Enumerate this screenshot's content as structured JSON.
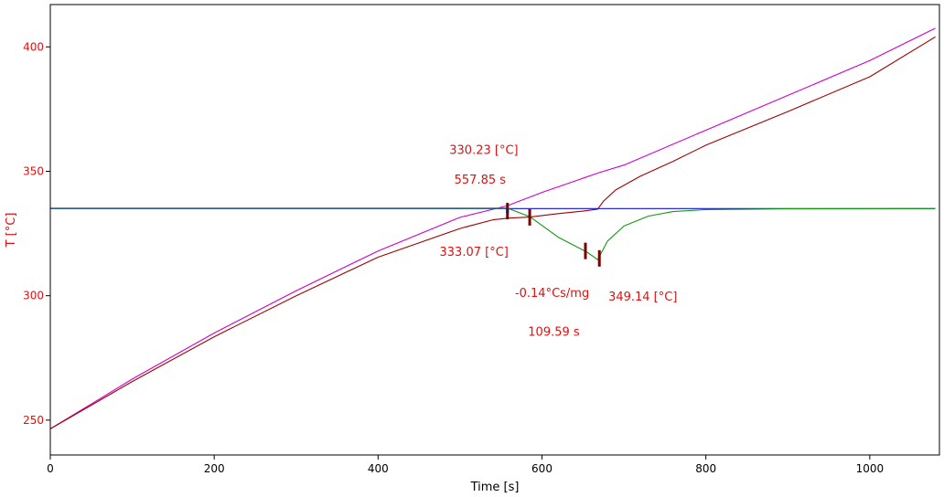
{
  "chart_data": {
    "type": "line",
    "xlabel": "Time [s]",
    "ylabel": "T  [°C]",
    "xlim": [
      0,
      1085
    ],
    "ylim": [
      236,
      417
    ],
    "xticks": [
      0,
      200,
      400,
      600,
      800,
      1000
    ],
    "yticks": [
      250,
      300,
      350,
      400
    ],
    "grid": false,
    "colors": {
      "frame": "#000000",
      "ytick_text": "#e01010",
      "annotation_text": "#e01010",
      "marker": "#7a0000",
      "marker_cap": "#1a1a6e"
    },
    "series": [
      {
        "color": "#cc00cc",
        "points": [
          [
            0,
            246.5
          ],
          [
            50,
            256.5
          ],
          [
            100,
            266.5
          ],
          [
            200,
            285
          ],
          [
            300,
            302
          ],
          [
            400,
            318
          ],
          [
            500,
            331.5
          ],
          [
            557.85,
            336.2
          ],
          [
            600,
            341.5
          ],
          [
            670,
            349.5
          ],
          [
            700,
            352.5
          ],
          [
            800,
            366.5
          ],
          [
            900,
            380.5
          ],
          [
            1000,
            394.5
          ],
          [
            1080,
            407.5
          ]
        ]
      },
      {
        "color": "#a00000",
        "points": [
          [
            0,
            246.5
          ],
          [
            50,
            256
          ],
          [
            100,
            265.5
          ],
          [
            200,
            283.5
          ],
          [
            300,
            300
          ],
          [
            400,
            315.5
          ],
          [
            500,
            327
          ],
          [
            540,
            330.5
          ],
          [
            560,
            331.2
          ],
          [
            585,
            331.6
          ],
          [
            620,
            333
          ],
          [
            650,
            334
          ],
          [
            668,
            334.8
          ],
          [
            675,
            338
          ],
          [
            690,
            342.5
          ],
          [
            720,
            348
          ],
          [
            760,
            354
          ],
          [
            800,
            360.5
          ],
          [
            900,
            374
          ],
          [
            1000,
            388
          ],
          [
            1080,
            404
          ]
        ]
      },
      {
        "color": "#1010cc",
        "points": [
          [
            0,
            335
          ],
          [
            200,
            335
          ],
          [
            400,
            335
          ],
          [
            557.85,
            335
          ],
          [
            600,
            335
          ],
          [
            668,
            335
          ],
          [
            800,
            335
          ],
          [
            1080,
            335
          ]
        ]
      },
      {
        "color": "#119911",
        "points": [
          [
            0,
            335.2
          ],
          [
            557.85,
            335.2
          ],
          [
            585,
            331.8
          ],
          [
            620,
            323.5
          ],
          [
            655,
            317.5
          ],
          [
            668,
            314.5
          ],
          [
            680,
            322
          ],
          [
            700,
            328
          ],
          [
            730,
            332
          ],
          [
            760,
            333.8
          ],
          [
            800,
            334.6
          ],
          [
            900,
            334.9
          ],
          [
            1080,
            335
          ]
        ]
      }
    ],
    "markers": [
      {
        "x": 557.85,
        "y": 334
      },
      {
        "x": 585,
        "y": 331.5
      },
      {
        "x": 653,
        "y": 318
      },
      {
        "x": 670,
        "y": 315
      }
    ],
    "annotations": [
      {
        "text": "330.23 [°C]",
        "x": 487,
        "y": 357
      },
      {
        "text": "557.85 s",
        "x": 493,
        "y": 345
      },
      {
        "text": "333.07 [°C]",
        "x": 475,
        "y": 316
      },
      {
        "text": "-0.14°Cs/mg",
        "x": 567,
        "y": 299.5
      },
      {
        "text": "349.14 [°C]",
        "x": 681,
        "y": 298
      },
      {
        "text": "109.59 s",
        "x": 583,
        "y": 284
      }
    ]
  }
}
